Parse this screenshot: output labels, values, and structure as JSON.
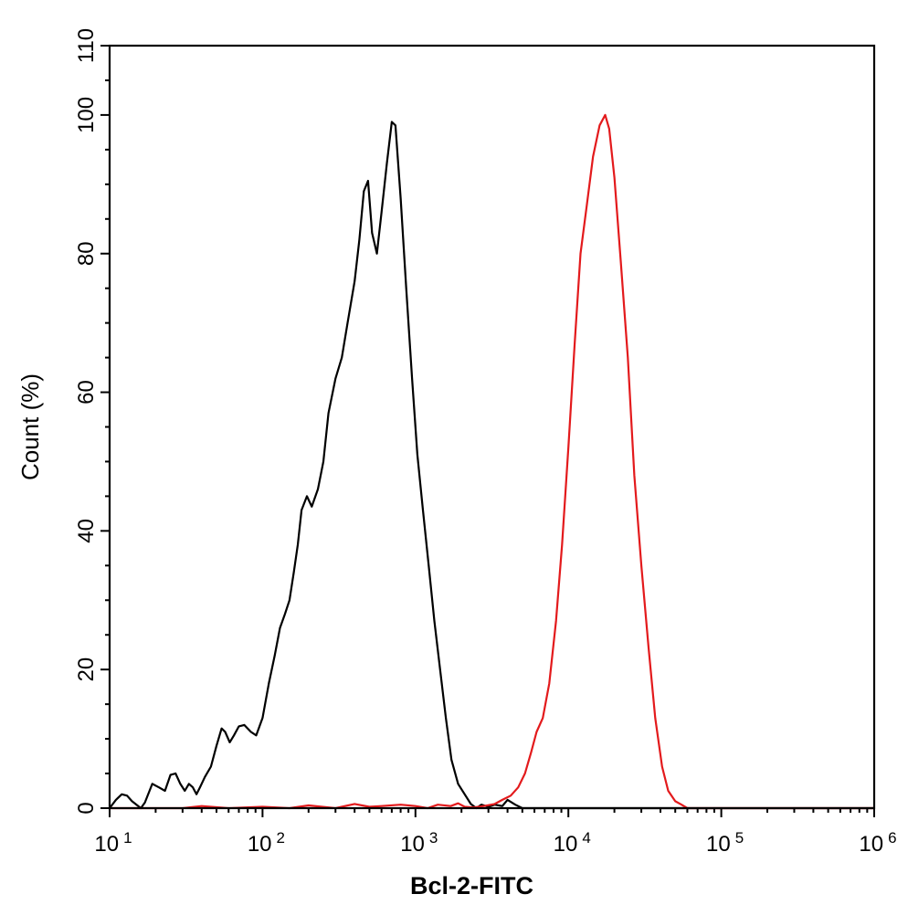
{
  "chart_data": {
    "type": "line",
    "title": "",
    "xlabel": "Bcl-2-FITC",
    "ylabel": "Count  (%)",
    "x_scale": "log",
    "xlim": [
      10,
      1000000
    ],
    "ylim": [
      0,
      110
    ],
    "x_ticks": [
      {
        "base": "10",
        "exp": "1",
        "value": 10
      },
      {
        "base": "10",
        "exp": "2",
        "value": 100
      },
      {
        "base": "10",
        "exp": "3",
        "value": 1000
      },
      {
        "base": "10",
        "exp": "4",
        "value": 10000
      },
      {
        "base": "10",
        "exp": "5",
        "value": 100000
      },
      {
        "base": "10",
        "exp": "6",
        "value": 1000000
      }
    ],
    "y_ticks": [
      0,
      20,
      40,
      60,
      80,
      100,
      110
    ],
    "grid": false,
    "series": [
      {
        "color": "#000000",
        "points": [
          [
            10,
            0
          ],
          [
            11,
            1.2
          ],
          [
            12,
            2
          ],
          [
            13,
            1.8
          ],
          [
            14,
            1
          ],
          [
            16,
            0
          ],
          [
            17,
            0.8
          ],
          [
            19,
            3.5
          ],
          [
            21,
            3
          ],
          [
            23,
            2.5
          ],
          [
            25,
            4.8
          ],
          [
            27,
            5
          ],
          [
            29,
            3.5
          ],
          [
            31,
            2.5
          ],
          [
            33,
            3.5
          ],
          [
            35,
            3
          ],
          [
            37,
            2
          ],
          [
            39,
            3
          ],
          [
            42,
            4.5
          ],
          [
            46,
            6
          ],
          [
            50,
            9
          ],
          [
            54,
            11.5
          ],
          [
            57,
            11
          ],
          [
            61,
            9.5
          ],
          [
            65,
            10.5
          ],
          [
            70,
            11.8
          ],
          [
            76,
            12
          ],
          [
            84,
            11
          ],
          [
            91,
            10.5
          ],
          [
            100,
            13
          ],
          [
            110,
            18
          ],
          [
            120,
            22
          ],
          [
            130,
            26
          ],
          [
            140,
            28
          ],
          [
            150,
            30
          ],
          [
            160,
            34
          ],
          [
            170,
            38
          ],
          [
            180,
            43
          ],
          [
            195,
            45
          ],
          [
            210,
            43.5
          ],
          [
            230,
            46
          ],
          [
            250,
            50
          ],
          [
            270,
            57
          ],
          [
            300,
            62
          ],
          [
            330,
            65
          ],
          [
            360,
            70
          ],
          [
            400,
            76
          ],
          [
            430,
            82
          ],
          [
            460,
            89
          ],
          [
            490,
            90.5
          ],
          [
            520,
            83
          ],
          [
            560,
            80
          ],
          [
            600,
            86
          ],
          [
            650,
            93
          ],
          [
            700,
            99
          ],
          [
            740,
            98.5
          ],
          [
            800,
            88
          ],
          [
            870,
            75
          ],
          [
            950,
            62
          ],
          [
            1030,
            51
          ],
          [
            1120,
            43
          ],
          [
            1220,
            35
          ],
          [
            1330,
            27
          ],
          [
            1450,
            20
          ],
          [
            1580,
            13
          ],
          [
            1720,
            7
          ],
          [
            1900,
            3.5
          ],
          [
            2100,
            2
          ],
          [
            2300,
            0.6
          ],
          [
            2500,
            0
          ],
          [
            2700,
            0.5
          ],
          [
            3000,
            0.2
          ],
          [
            3300,
            0.5
          ],
          [
            3700,
            0.3
          ],
          [
            4000,
            1.2
          ],
          [
            4500,
            0.5
          ],
          [
            5000,
            0
          ],
          [
            1000000,
            0
          ]
        ]
      },
      {
        "color": "#e31a1c",
        "points": [
          [
            10,
            0
          ],
          [
            30,
            0
          ],
          [
            40,
            0.3
          ],
          [
            60,
            0
          ],
          [
            100,
            0.2
          ],
          [
            150,
            0
          ],
          [
            200,
            0.4
          ],
          [
            300,
            0
          ],
          [
            400,
            0.6
          ],
          [
            500,
            0.2
          ],
          [
            600,
            0.3
          ],
          [
            800,
            0.5
          ],
          [
            1000,
            0.3
          ],
          [
            1200,
            0
          ],
          [
            1400,
            0.5
          ],
          [
            1700,
            0.3
          ],
          [
            1900,
            0.7
          ],
          [
            2100,
            0.2
          ],
          [
            2400,
            0.1
          ],
          [
            2800,
            0.3
          ],
          [
            3300,
            0.6
          ],
          [
            3700,
            1.2
          ],
          [
            4200,
            1.8
          ],
          [
            4700,
            3
          ],
          [
            5200,
            5
          ],
          [
            5700,
            8
          ],
          [
            6200,
            11
          ],
          [
            6800,
            13
          ],
          [
            7500,
            18
          ],
          [
            8300,
            27
          ],
          [
            9100,
            38
          ],
          [
            10000,
            52
          ],
          [
            11000,
            67
          ],
          [
            12000,
            80
          ],
          [
            13200,
            87
          ],
          [
            14500,
            94
          ],
          [
            16000,
            98.5
          ],
          [
            17400,
            100
          ],
          [
            18500,
            98
          ],
          [
            20000,
            91
          ],
          [
            22000,
            79
          ],
          [
            24500,
            65
          ],
          [
            27000,
            48
          ],
          [
            30000,
            35
          ],
          [
            33500,
            23
          ],
          [
            37000,
            13
          ],
          [
            41000,
            6
          ],
          [
            45000,
            2.5
          ],
          [
            50000,
            1
          ],
          [
            55000,
            0.5
          ],
          [
            60000,
            0
          ],
          [
            1000000,
            0
          ]
        ]
      }
    ]
  }
}
